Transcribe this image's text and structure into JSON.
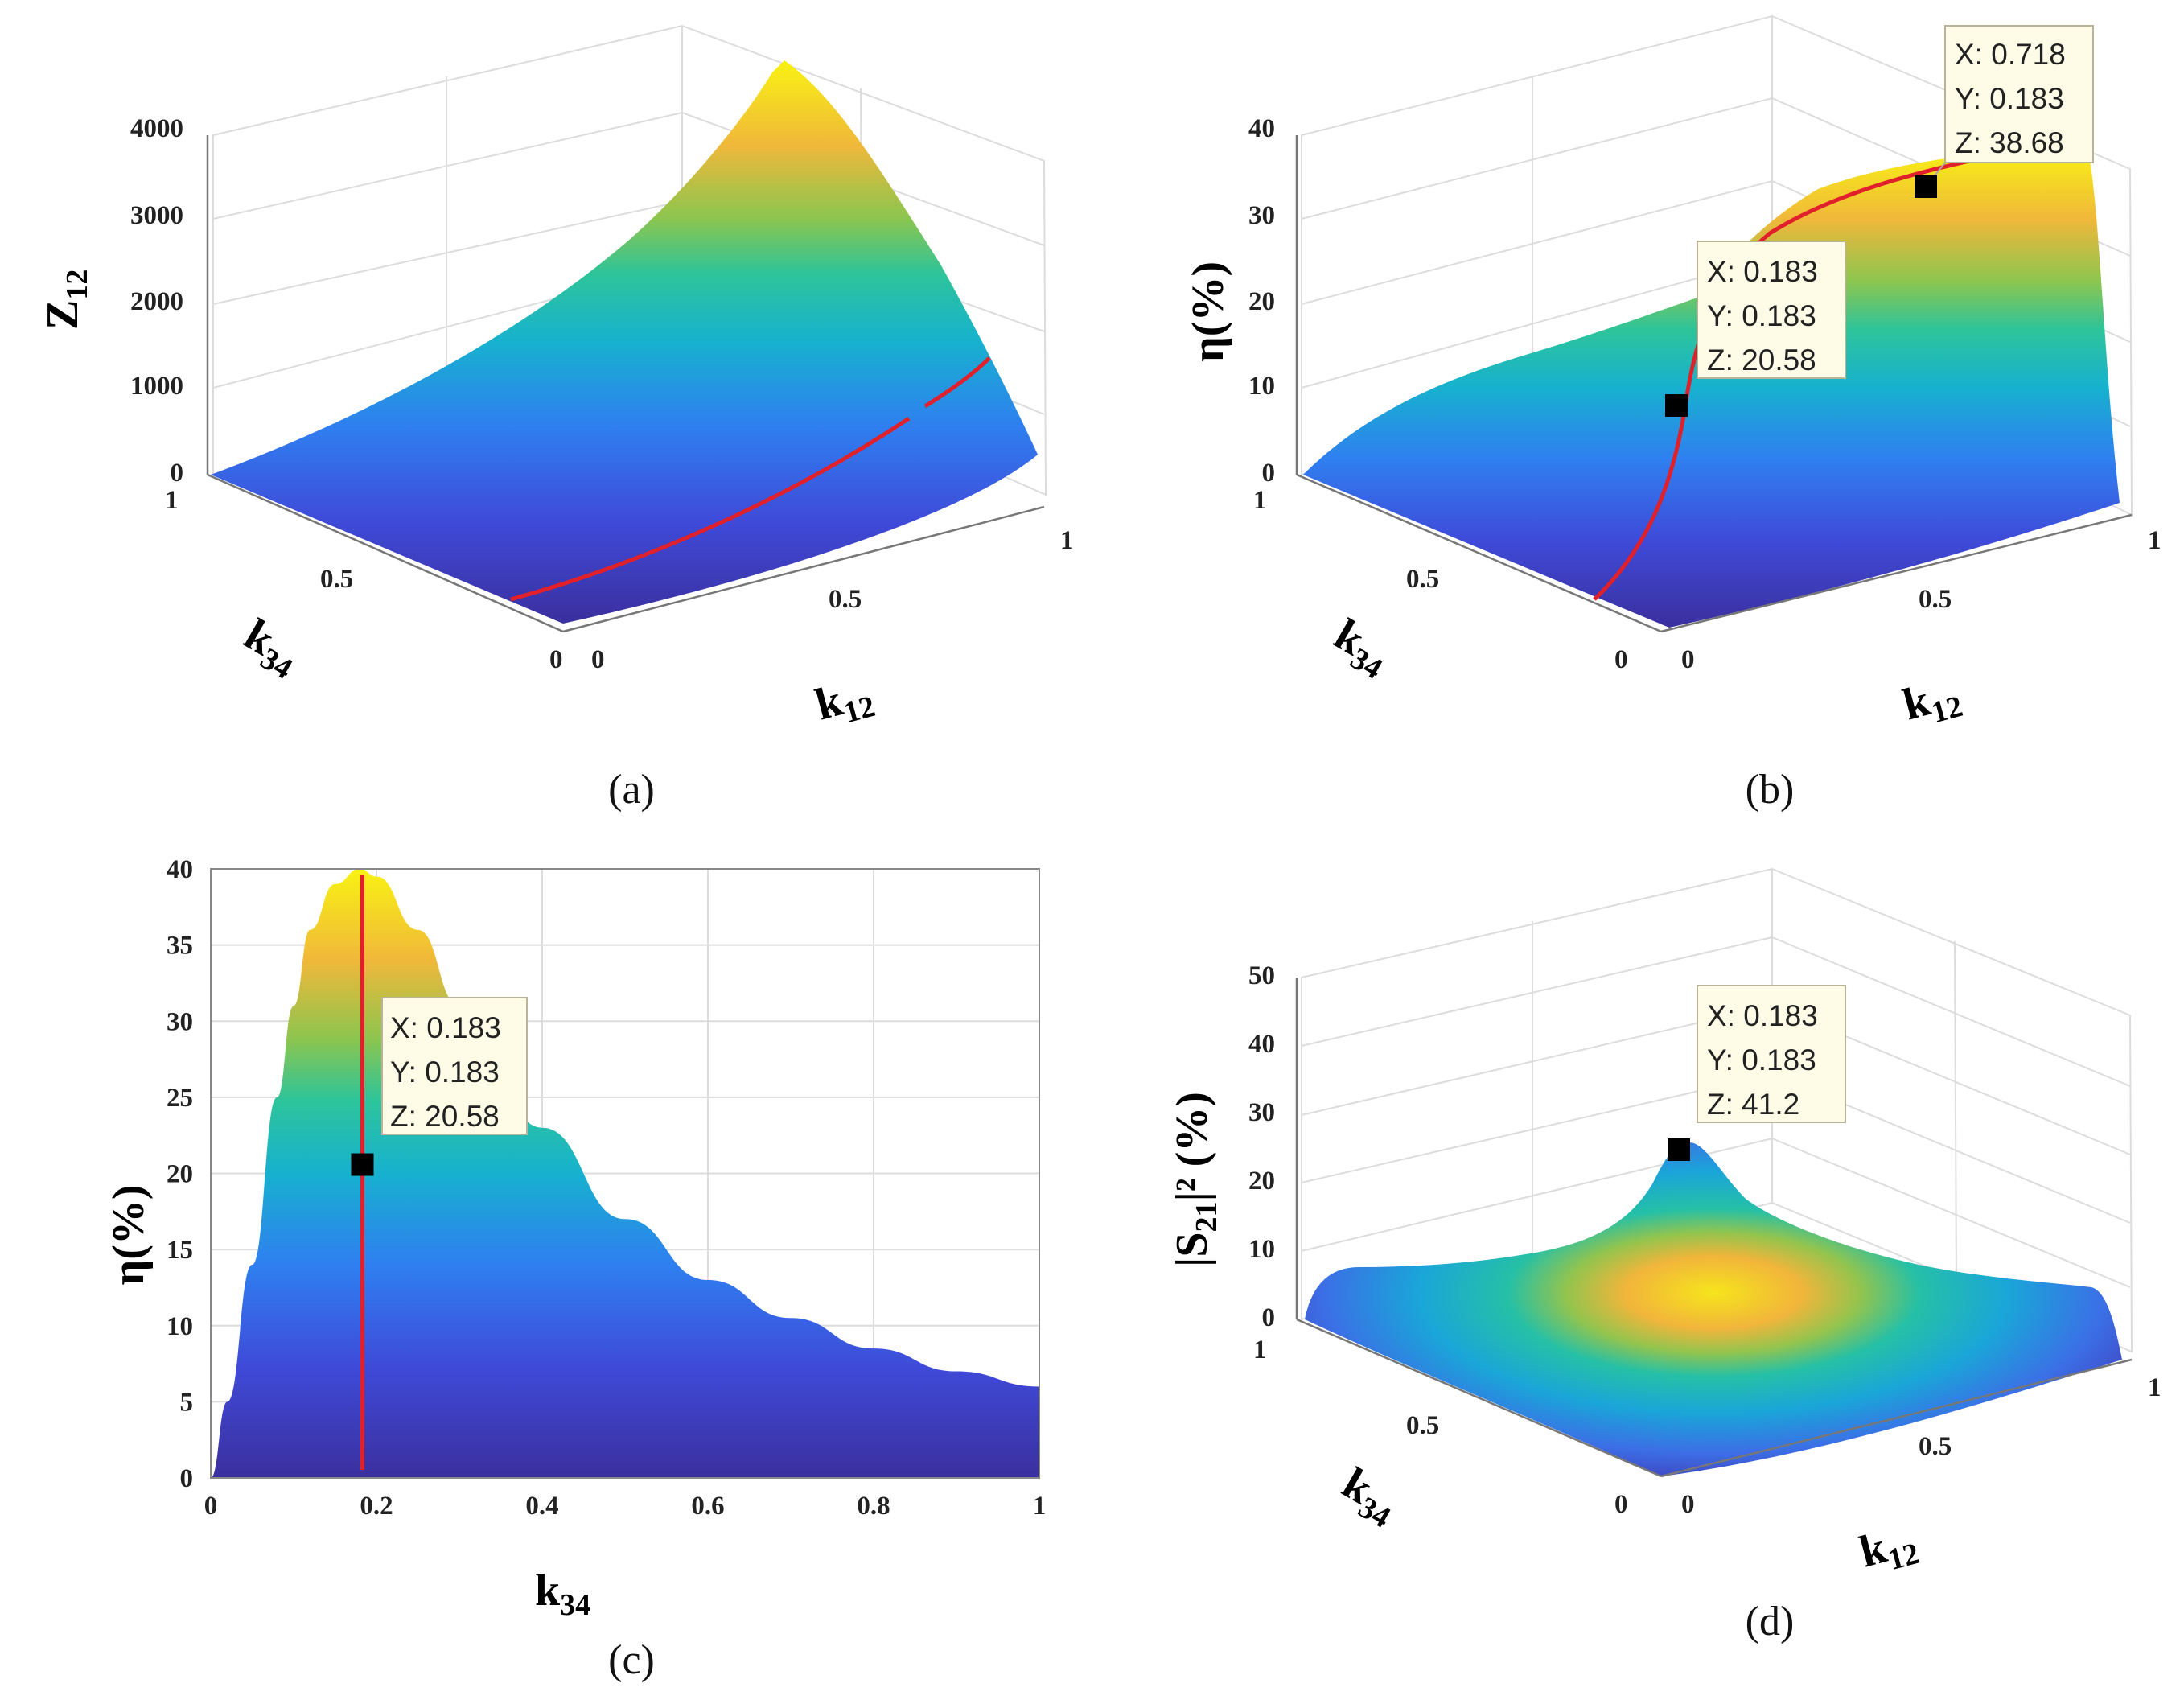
{
  "chart_data": [
    {
      "id": "a",
      "type": "surface3d",
      "subtitle": "(a)",
      "zlabel": "Z",
      "zlabel_sub": "12",
      "xlabel": "k",
      "xlabel_sub": "12",
      "ylabel": "k",
      "ylabel_sub": "34",
      "zlim": [
        0,
        4000
      ],
      "zticks": [
        "0",
        "1000",
        "2000",
        "3000",
        "4000"
      ],
      "xticks": [
        "0",
        "0.5",
        "1"
      ],
      "yticks": [
        "0",
        "0.5",
        "1"
      ],
      "datatips": []
    },
    {
      "id": "b",
      "type": "surface3d",
      "subtitle": "(b)",
      "zlabel": "η(%)",
      "xlabel": "k",
      "xlabel_sub": "12",
      "ylabel": "k",
      "ylabel_sub": "34",
      "zlim": [
        0,
        40
      ],
      "zticks": [
        "0",
        "10",
        "20",
        "30",
        "40"
      ],
      "xticks": [
        "0",
        "0.5",
        "1"
      ],
      "yticks": [
        "0",
        "0.5",
        "1"
      ],
      "datatips": [
        {
          "x": "X: 0.718",
          "y": "Y: 0.183",
          "z": "Z: 38.68"
        },
        {
          "x": "X: 0.183",
          "y": "Y: 0.183",
          "z": "Z: 20.58"
        }
      ]
    },
    {
      "id": "c",
      "type": "area",
      "subtitle": "(c)",
      "ylabel": "η(%)",
      "xlabel": "k",
      "xlabel_sub": "34",
      "xlim": [
        0,
        1
      ],
      "ylim": [
        0,
        40
      ],
      "xticks": [
        "0",
        "0.2",
        "0.4",
        "0.6",
        "0.8",
        "1"
      ],
      "yticks": [
        "0",
        "5",
        "10",
        "15",
        "20",
        "25",
        "30",
        "35",
        "40"
      ],
      "x": [
        0,
        0.02,
        0.05,
        0.08,
        0.1,
        0.12,
        0.15,
        0.18,
        0.2,
        0.25,
        0.3,
        0.4,
        0.5,
        0.6,
        0.7,
        0.8,
        0.9,
        1.0
      ],
      "y": [
        0,
        5,
        14,
        25,
        31,
        36,
        39,
        40,
        39.5,
        36,
        31,
        23,
        17,
        13,
        10.5,
        8.5,
        7,
        6
      ],
      "vline_x": 0.183,
      "datatips": [
        {
          "x": "X: 0.183",
          "y": "Y: 0.183",
          "z": "Z: 20.58"
        }
      ]
    },
    {
      "id": "d",
      "type": "surface3d",
      "subtitle": "(d)",
      "zlabel": "|S",
      "zlabel_sub": "21",
      "zlabel_tail": "|² (%)",
      "xlabel": "k",
      "xlabel_sub": "12",
      "ylabel": "k",
      "ylabel_sub": "34",
      "zlim": [
        0,
        50
      ],
      "zticks": [
        "0",
        "10",
        "20",
        "30",
        "40",
        "50"
      ],
      "xticks": [
        "0",
        "0.5",
        "1"
      ],
      "yticks": [
        "0",
        "0.5",
        "1"
      ],
      "datatips": [
        {
          "x": "X: 0.183",
          "y": "Y: 0.183",
          "z": "Z: 41.2"
        }
      ]
    }
  ]
}
